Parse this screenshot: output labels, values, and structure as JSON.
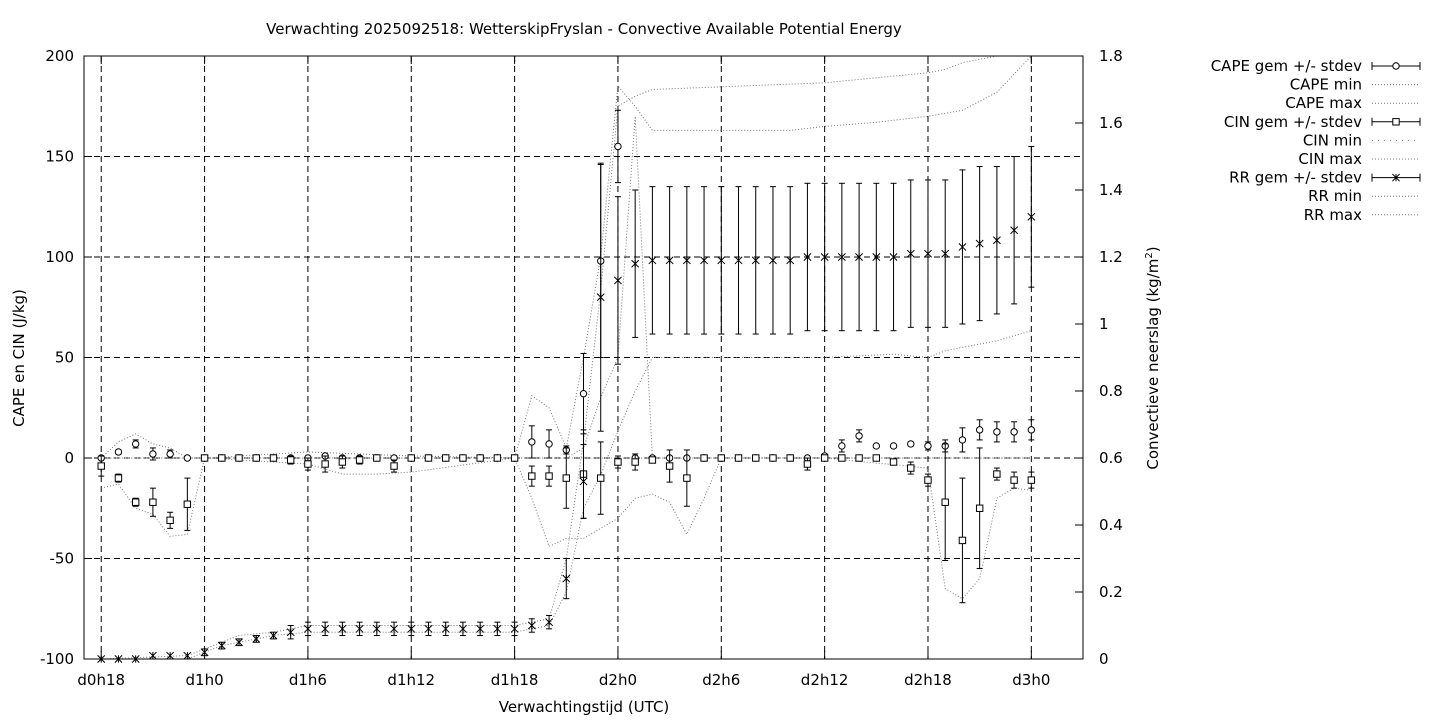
{
  "chart_data": {
    "type": "line",
    "title": "Verwachting 2025092518: WetterskipFryslan - Convective Available Potential Energy",
    "xlabel": "Verwachtingstijd (UTC)",
    "ylabel": "CAPE en CIN (J/kg)",
    "y2label_main": "Convectieve neerslag (kg/m",
    "y2label_sup": "2",
    "y2label_end": ")",
    "x_unit": "hours since d0h0",
    "xlim": [
      17,
      75
    ],
    "ylim": [
      -100,
      200
    ],
    "y2lim": [
      0,
      1.8
    ],
    "grid": true,
    "legend_position": "top-right outside",
    "x_ticks": [
      {
        "x": 18,
        "label": "d0h18"
      },
      {
        "x": 24,
        "label": "d1h0"
      },
      {
        "x": 30,
        "label": "d1h6"
      },
      {
        "x": 36,
        "label": "d1h12"
      },
      {
        "x": 42,
        "label": "d1h18"
      },
      {
        "x": 48,
        "label": "d2h0"
      },
      {
        "x": 54,
        "label": "d2h6"
      },
      {
        "x": 60,
        "label": "d2h12"
      },
      {
        "x": 66,
        "label": "d2h18"
      },
      {
        "x": 72,
        "label": "d3h0"
      }
    ],
    "y_ticks": [
      "-100",
      "-50",
      "0",
      "50",
      "100",
      "150",
      "200"
    ],
    "y2_ticks": [
      "0",
      "0.2",
      "0.4",
      "0.6",
      "0.8",
      "1",
      "1.2",
      "1.4",
      "1.6",
      "1.8"
    ],
    "legend": [
      {
        "label": "CAPE gem +/- stdev",
        "key": "errbar-circle"
      },
      {
        "label": "CAPE min",
        "key": "dotted"
      },
      {
        "label": "CAPE max",
        "key": "dotted"
      },
      {
        "label": "CIN gem +/- stdev",
        "key": "errbar-square"
      },
      {
        "label": "CIN min",
        "key": "dotted-sparse"
      },
      {
        "label": "CIN max",
        "key": "dotted"
      },
      {
        "label": "RR gem +/- stdev",
        "key": "errbar-star"
      },
      {
        "label": "RR min",
        "key": "dotted"
      },
      {
        "label": "RR max",
        "key": "dotted"
      }
    ],
    "series": [
      {
        "name": "CAPE gem +/- stdev",
        "axis": "y1",
        "x": [
          18,
          19,
          20,
          21,
          22,
          23,
          24,
          25,
          26,
          27,
          28,
          29,
          30,
          31,
          32,
          33,
          34,
          35,
          36,
          37,
          38,
          39,
          40,
          41,
          42,
          43,
          44,
          45,
          46,
          47,
          48,
          49,
          50,
          51,
          52,
          53,
          54,
          55,
          56,
          57,
          58,
          59,
          60,
          61,
          62,
          63,
          64,
          65,
          66,
          67,
          68,
          69,
          70,
          71,
          72
        ],
        "y": [
          0,
          3,
          7,
          2,
          2,
          0,
          0,
          0,
          0,
          0,
          0,
          0,
          0,
          1,
          0,
          0,
          0,
          0,
          0,
          0,
          0,
          0,
          0,
          0,
          0,
          8,
          7,
          4,
          32,
          98,
          155,
          0,
          0,
          0,
          0,
          0,
          0,
          0,
          0,
          0,
          0,
          0,
          1,
          6,
          11,
          6,
          6,
          7,
          6,
          6,
          9,
          14,
          13,
          13,
          14
        ],
        "err": [
          0,
          1,
          2,
          3,
          2,
          0,
          0,
          0,
          0,
          0,
          0,
          0,
          0,
          0,
          0,
          0,
          0,
          0,
          0,
          0,
          0,
          0,
          0,
          0,
          0,
          8,
          7,
          2,
          20,
          48,
          18,
          0,
          0,
          0,
          0,
          0,
          0,
          0,
          0,
          0,
          0,
          0,
          1,
          3,
          3,
          0,
          0,
          1,
          2,
          3,
          6,
          5,
          5,
          5,
          5
        ]
      },
      {
        "name": "CIN gem +/- stdev",
        "axis": "y1",
        "x": [
          18,
          19,
          20,
          21,
          22,
          23,
          24,
          25,
          26,
          27,
          28,
          29,
          30,
          31,
          32,
          33,
          34,
          35,
          36,
          37,
          38,
          39,
          40,
          41,
          42,
          43,
          44,
          45,
          46,
          47,
          48,
          49,
          50,
          51,
          52,
          53,
          54,
          55,
          56,
          57,
          58,
          59,
          60,
          61,
          62,
          63,
          64,
          65,
          66,
          67,
          68,
          69,
          70,
          71,
          72
        ],
        "y": [
          -4,
          -10,
          -22,
          -22,
          -31,
          -23,
          0,
          0,
          0,
          0,
          0,
          -1,
          -3,
          -3,
          -2,
          -1,
          0,
          -4,
          0,
          0,
          0,
          0,
          0,
          0,
          0,
          -9,
          -9,
          -10,
          -8,
          -10,
          -2,
          -2,
          -1,
          -4,
          -10,
          0,
          0,
          0,
          0,
          0,
          0,
          -3,
          0,
          0,
          0,
          0,
          -2,
          -5,
          -11,
          -22,
          -41,
          -25,
          -8,
          -11,
          -11
        ],
        "err": [
          5,
          2,
          2,
          7,
          4,
          13,
          0,
          0,
          1,
          0,
          1,
          2,
          3,
          4,
          3,
          2,
          0,
          3,
          0,
          0,
          0,
          0,
          0,
          0,
          0,
          5,
          5,
          15,
          22,
          18,
          3,
          4,
          1,
          8,
          14,
          0,
          0,
          0,
          0,
          0,
          0,
          3,
          0,
          0,
          0,
          0,
          1,
          3,
          3,
          29,
          31,
          30,
          3,
          4,
          4
        ]
      },
      {
        "name": "RR gem +/- stdev",
        "axis": "y2",
        "x": [
          18,
          19,
          20,
          21,
          22,
          23,
          24,
          25,
          26,
          27,
          28,
          29,
          30,
          31,
          32,
          33,
          34,
          35,
          36,
          37,
          38,
          39,
          40,
          41,
          42,
          43,
          44,
          45,
          46,
          47,
          48,
          49,
          50,
          51,
          52,
          53,
          54,
          55,
          56,
          57,
          58,
          59,
          60,
          61,
          62,
          63,
          64,
          65,
          66,
          67,
          68,
          69,
          70,
          71,
          72
        ],
        "y": [
          0,
          0,
          0,
          0.01,
          0.01,
          0.01,
          0.02,
          0.04,
          0.05,
          0.06,
          0.07,
          0.08,
          0.09,
          0.09,
          0.09,
          0.09,
          0.09,
          0.09,
          0.09,
          0.09,
          0.09,
          0.09,
          0.09,
          0.09,
          0.09,
          0.1,
          0.11,
          0.24,
          0.53,
          1.08,
          1.13,
          1.18,
          1.19,
          1.19,
          1.19,
          1.19,
          1.19,
          1.19,
          1.19,
          1.19,
          1.19,
          1.2,
          1.2,
          1.2,
          1.2,
          1.2,
          1.2,
          1.21,
          1.21,
          1.21,
          1.23,
          1.24,
          1.25,
          1.28,
          1.32
        ],
        "err": [
          0,
          0,
          0,
          0,
          0,
          0,
          0.01,
          0.01,
          0.01,
          0.01,
          0.01,
          0.02,
          0.02,
          0.02,
          0.02,
          0.02,
          0.02,
          0.02,
          0.02,
          0.02,
          0.02,
          0.02,
          0.02,
          0.02,
          0.02,
          0.02,
          0.02,
          0.06,
          0.11,
          0.4,
          0.25,
          0.22,
          0.22,
          0.22,
          0.22,
          0.22,
          0.22,
          0.22,
          0.22,
          0.22,
          0.22,
          0.22,
          0.22,
          0.22,
          0.22,
          0.22,
          0.22,
          0.22,
          0.22,
          0.22,
          0.23,
          0.23,
          0.22,
          0.22,
          0.21
        ]
      },
      {
        "name": "CAPE min",
        "axis": "y1",
        "x": [
          18,
          19,
          20,
          21,
          22,
          23,
          24,
          30,
          36,
          42,
          43,
          44,
          45,
          46,
          47,
          48,
          49,
          50,
          51,
          52,
          54,
          60,
          66,
          72
        ],
        "y": [
          0,
          0,
          0,
          0,
          0,
          0,
          0,
          0,
          0,
          0,
          0,
          0,
          0,
          5,
          30,
          50,
          170,
          0,
          0,
          0,
          0,
          0,
          0,
          0
        ]
      },
      {
        "name": "CAPE max",
        "axis": "y1",
        "x": [
          18,
          19,
          20,
          21,
          22,
          23,
          24,
          30,
          36,
          42,
          43,
          44,
          45,
          46,
          47,
          48,
          49,
          50,
          51,
          52,
          54,
          58,
          60,
          63,
          66,
          68,
          70,
          72
        ],
        "y": [
          0,
          8,
          12,
          7,
          5,
          0,
          0,
          3,
          1,
          0,
          31,
          25,
          5,
          50,
          100,
          185,
          175,
          163,
          163,
          163,
          163,
          163,
          165,
          167,
          170,
          173,
          182,
          200
        ]
      },
      {
        "name": "CIN min",
        "axis": "y1",
        "x": [
          18,
          19,
          20,
          21,
          22,
          23,
          24,
          30,
          32,
          34,
          36,
          42,
          43,
          44,
          45,
          46,
          47,
          48,
          49,
          50,
          51,
          52,
          53,
          54,
          60,
          66,
          67,
          68,
          69,
          70,
          71,
          72
        ],
        "y": [
          -15,
          -13,
          -25,
          -28,
          -39,
          -38,
          0,
          -3,
          -8,
          -8,
          -7,
          0,
          -20,
          -44,
          -40,
          -40,
          -35,
          -30,
          -20,
          -18,
          -22,
          -38,
          -20,
          0,
          0,
          -5,
          -65,
          -70,
          -60,
          -20,
          -15,
          -16
        ]
      },
      {
        "name": "CIN max",
        "axis": "y1",
        "x": [
          18,
          24,
          30,
          36,
          42,
          48,
          54,
          60,
          66,
          72
        ],
        "y": [
          0,
          0,
          0,
          0,
          0,
          0,
          0,
          0,
          0,
          0
        ]
      },
      {
        "name": "RR min",
        "axis": "y2",
        "x": [
          18,
          23,
          24,
          25,
          26,
          28,
          30,
          36,
          42,
          44,
          45,
          46,
          47,
          48,
          49,
          50,
          60,
          64,
          66,
          67,
          68,
          70,
          72
        ],
        "y": [
          0,
          0,
          0.02,
          0.04,
          0.05,
          0.07,
          0.08,
          0.08,
          0.08,
          0.1,
          0.2,
          0.45,
          0.55,
          0.68,
          0.8,
          0.9,
          0.9,
          0.91,
          0.9,
          0.92,
          0.93,
          0.95,
          0.98
        ]
      },
      {
        "name": "RR max",
        "axis": "y2",
        "x": [
          18,
          23,
          24,
          25,
          26,
          28,
          30,
          36,
          42,
          44,
          45,
          46,
          47,
          48,
          49,
          50,
          60,
          64,
          66,
          67,
          68,
          70,
          72
        ],
        "y": [
          0,
          0.01,
          0.03,
          0.05,
          0.07,
          0.08,
          0.1,
          0.1,
          0.1,
          0.12,
          0.3,
          0.65,
          1.1,
          1.65,
          1.68,
          1.7,
          1.72,
          1.74,
          1.75,
          1.76,
          1.78,
          1.8,
          1.82
        ]
      }
    ]
  }
}
